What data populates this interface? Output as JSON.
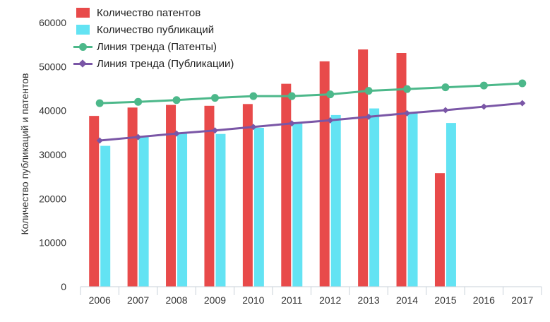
{
  "chart_data": {
    "type": "bar",
    "title": "",
    "xlabel": "",
    "ylabel": "Количество публикаций и патентов",
    "ylim": [
      0,
      60000
    ],
    "yticks": [
      0,
      10000,
      20000,
      30000,
      40000,
      50000,
      60000
    ],
    "categories": [
      "2006",
      "2007",
      "2008",
      "2009",
      "2010",
      "2011",
      "2012",
      "2013",
      "2014",
      "2015",
      "2016",
      "2017"
    ],
    "series": [
      {
        "name": "Количество патентов",
        "kind": "bar",
        "color": "#e84a4a",
        "values": [
          38800,
          40700,
          41300,
          41100,
          41500,
          46100,
          51200,
          53900,
          53100,
          25800,
          null,
          null
        ]
      },
      {
        "name": "Количество публикаций",
        "kind": "bar",
        "color": "#63e3f3",
        "values": [
          32000,
          34200,
          34800,
          34700,
          36100,
          37200,
          39000,
          40500,
          39500,
          37200,
          null,
          null
        ]
      },
      {
        "name": "Линия тренда (Патенты)",
        "kind": "line",
        "marker": "circle",
        "color": "#4cb88a",
        "values": [
          41700,
          42000,
          42400,
          42900,
          43300,
          43300,
          43700,
          44500,
          44900,
          45300,
          45700,
          46200
        ]
      },
      {
        "name": "Линия тренда (Публикации)",
        "kind": "line",
        "marker": "diamond",
        "color": "#7a56a6",
        "values": [
          33200,
          34000,
          34800,
          35500,
          36300,
          37100,
          37800,
          38600,
          39400,
          40100,
          40900,
          41700
        ]
      }
    ],
    "legend": "top-left",
    "grid": false
  }
}
